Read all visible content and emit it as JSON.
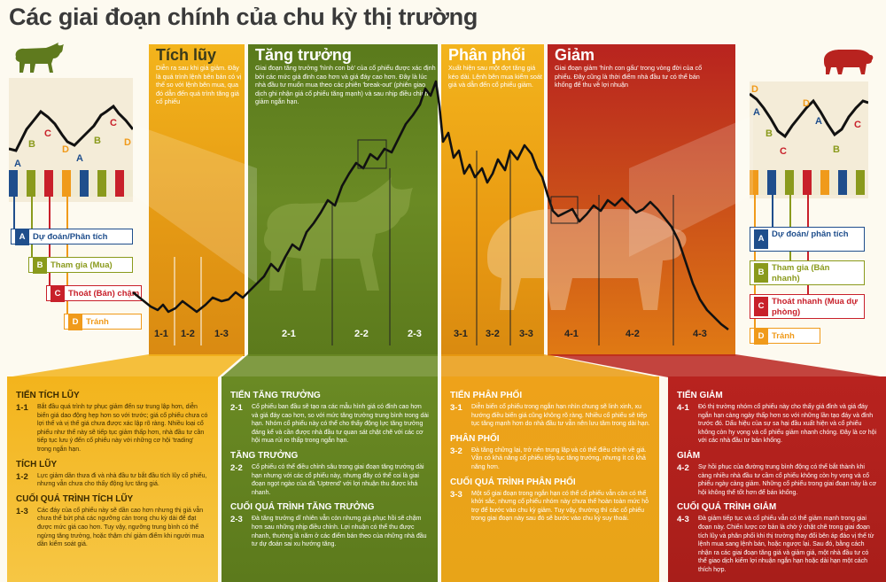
{
  "title": "Các giai đoạn chính của chu kỳ thị trường",
  "panels": [
    {
      "id": "tich-luy",
      "head": "Tích lũy",
      "desc": "Diễn ra sau khi giá giảm. Đây là quá trình lệnh bên bán có vị thế so với lệnh bên mua, qua đó dẫn đến quá trình tăng giá cổ phiếu"
    },
    {
      "id": "tang-truong",
      "head": "Tăng trưởng",
      "desc": "Giai đoạn tăng trưởng 'hình con bò' của cổ phiếu được xác định bởi các mức giá đỉnh cao hơn và giá đáy cao hơn. Đây là lúc nhà đầu tư muốn mua theo các phiên 'break-out' (phiên giao dịch ghi nhận giá cổ phiếu tăng mạnh) và sau nhịp điều chỉnh giảm ngắn hạn."
    },
    {
      "id": "phan-phoi",
      "head": "Phân phối",
      "desc": "Xuất hiện sau một đợt tăng giá kéo dài. Lệnh bên mua kiểm soát giá và dẫn đến cổ phiếu giảm."
    },
    {
      "id": "giam",
      "head": "Giảm",
      "desc": "Giai đoạn giảm 'hình con gấu' trong vòng đời của cổ phiếu. Đây cũng là thời điểm nhà đầu tư có thể bán khống để thu về lợi nhuận"
    }
  ],
  "stage_labels": [
    "1-1",
    "1-2",
    "1-3",
    "2-1",
    "2-2",
    "2-3",
    "3-1",
    "3-2",
    "3-3",
    "4-1",
    "4-2",
    "4-3"
  ],
  "legend_left": [
    {
      "letter": "A",
      "text": "Dự đoán/Phân tích",
      "color": "#1f4e8c"
    },
    {
      "letter": "B",
      "text": "Tham gia (Mua)",
      "color": "#8a9a1c"
    },
    {
      "letter": "C",
      "text": "Thoát (Bán) chậm",
      "color": "#c8202a"
    },
    {
      "letter": "D",
      "text": "Tránh",
      "color": "#f09a1a"
    }
  ],
  "legend_right": [
    {
      "letter": "A",
      "text": "Dự đoán/ phân tích",
      "color": "#1f4e8c"
    },
    {
      "letter": "B",
      "text": "Tham gia (Bán nhanh)",
      "color": "#8a9a1c"
    },
    {
      "letter": "C",
      "text": "Thoát nhanh (Mua dự phòng)",
      "color": "#c8202a"
    },
    {
      "letter": "D",
      "text": "Tránh",
      "color": "#f09a1a"
    }
  ],
  "mini_left_letters": [
    "A",
    "B",
    "C",
    "D",
    "A",
    "B",
    "C",
    "D"
  ],
  "mini_right_letters": [
    "D",
    "A",
    "B",
    "C",
    "D",
    "A",
    "B",
    "C"
  ],
  "bottom": [
    {
      "id": "b1",
      "sections": [
        {
          "title": "TIẾN TÍCH LŨY",
          "num": "1-1",
          "text": "Bắt đầu quá trình tự phục giảm đến sự trung lập hơn, diễn biến giá dao động hẹp hơn so với trước; giá cổ phiếu chưa có lợi thế và vị thế giá chưa được xác lập rõ ràng. Nhiều loại cổ phiếu như thế này sẽ tiếp tục giảm thấp hơn, nhà đầu tư cần tiếp tục lưu ý đến cổ phiếu này với những cơ hội 'trading' trong ngắn hạn."
        },
        {
          "title": "TÍCH LŨY",
          "num": "1-2",
          "text": "Lực giảm dần thưa đi và nhà đầu tư bắt đầu tích lũy cổ phiếu, nhưng vẫn chưa cho thấy động lực tăng giá."
        },
        {
          "title": "CUỐI QUÁ TRÌNH TÍCH LŨY",
          "num": "1-3",
          "text": "Các đáy của cổ phiếu này sẽ dần cao hơn nhưng thị giá vẫn chưa thể bứt phá các ngưỡng cản trong chu kỳ dài để đạt được mức giá cao hơn. Tuy vậy, ngưỡng trung bình có thể ngừng tăng trưởng, hoặc thậm chí giảm điểm khi người mua dần kiểm soát giá."
        }
      ]
    },
    {
      "id": "b2",
      "sections": [
        {
          "title": "TIẾN TĂNG TRƯỞNG",
          "num": "2-1",
          "text": "Cổ phiếu ban đầu sẽ tạo ra các mẫu hình giá có đỉnh cao hơn và giá đáy cao hơn, so với mức tăng trưởng trung bình trong dài hạn. Nhóm cổ phiếu này có thể cho thấy động lực tăng trưởng đáng kể và cần được nhà đầu tư quan sát chặt chẽ với các cơ hội mua rủi ro thấp trong ngắn hạn."
        },
        {
          "title": "TĂNG TRƯỞNG",
          "num": "2-2",
          "text": "Cổ phiếu có thể điều chỉnh sâu trong giai đoạn tăng trưởng dài hạn nhưng với các cổ phiếu này, nhưng đây có thể coi là giai đoạn ngọt ngào của đà 'Uptrend' với lợi nhuận thu được khá nhanh."
        },
        {
          "title": "CUỐI QUÁ TRÌNH TĂNG TRƯỞNG",
          "num": "2-3",
          "text": "Đà tăng trưởng dĩ nhiên vẫn còn nhưng giá phục hồi sẽ chậm hơn sau những nhịp điều chỉnh. Lợi nhuận có thể thu được nhanh, thường là năm ở các điểm bán theo của những nhà đầu tư dự đoán sai xu hướng tăng."
        }
      ]
    },
    {
      "id": "b3",
      "sections": [
        {
          "title": "TIẾN PHÂN PHỐI",
          "num": "3-1",
          "text": "Diễn biến cổ phiếu trong ngắn hạn nhìn chung sẽ linh xinh, xu hướng điều biến giá cũng không rõ ràng. Nhiều cổ phiếu sẽ tiếp tục tăng mạnh hơn do nhà đầu tư vẫn nên lưu tâm trong dài hạn."
        },
        {
          "title": "PHÂN PHỐI",
          "num": "3-2",
          "text": "Đà tăng chững lại, trở nên trung lập và có thể điều chỉnh về giá. Vẫn có khả năng cổ phiếu tiếp tục tăng trưởng, nhưng ít có khả năng hơn."
        },
        {
          "title": "CUỐI QUÁ TRÌNH PHÂN PHỐI",
          "num": "3-3",
          "text": "Một số giai đoạn trong ngắn hạn có thể cổ phiếu vẫn còn có thể khởi sắc, nhưng cổ phiếu nhóm này chưa thể hoàn toàn mức hỗ trợ để bước vào chu kỳ giảm. Tuy vậy, thường thì các cổ phiếu trong giai đoạn này sau đó sẽ bước vào chu kỳ suy thoái."
        }
      ]
    },
    {
      "id": "b4",
      "sections": [
        {
          "title": "TIẾN GIẢM",
          "num": "4-1",
          "text": "Đó thị trường nhóm cổ phiếu này cho thấy giá đỉnh và giá đáy ngắn hạn càng ngày thấp hơn so với những lần tạo đáy và đỉnh trước đó. Dấu hiệu của sự sa hại đầu xuất hiện và cổ phiếu không còn hy vọng và cổ phiếu giảm nhanh chóng. Đây là cơ hội với các nhà đầu tư bán khống."
        },
        {
          "title": "GIẢM",
          "num": "4-2",
          "text": "Sự hồi phục của đường trung bình động có thể bắt thành khi càng nhiều nhà đầu tư cầm cổ phiếu không còn hy vọng và cổ phiếu ngày càng giảm. Những cổ phiếu trong giai đoạn này là cơ hội không thể tốt hơn để bán khống."
        },
        {
          "title": "CUỐI QUÁ TRÌNH GIẢM",
          "num": "4-3",
          "text": "Đà giảm tiếp tục và cổ phiếu vẫn có thể giảm mạnh trong giai đoạn này. Chiến lược cơ bản là chờ ý chặt chẽ trong giai đoạn tích lũy và phân phối khi thị trường thay đổi bên áp đảo vị thế từ lệnh mua sang lệnh bán, hoặc ngược lại. Sau đó, bằng cách nhận ra các giai đoạn tăng giá và giảm giá, một nhà đầu tư có thể giao dịch kiếm lợi nhuận ngắn hạn hoặc dài hạn một cách thích hợp."
        }
      ]
    }
  ],
  "colors": {
    "yellow": "#f3b41c",
    "green": "#5f7a1e",
    "orange": "#e99a12",
    "red": "#b8231f",
    "bg": "#fdfaf0"
  },
  "icons": {
    "bull": "bull-icon",
    "bear": "bear-icon"
  }
}
